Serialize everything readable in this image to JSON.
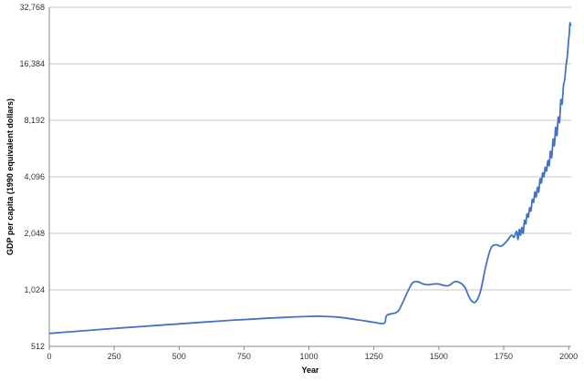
{
  "chart_data": {
    "type": "line",
    "title": "",
    "xlabel": "Year",
    "ylabel": "GDP per capita (1990 equivalent dollars)",
    "x_ticks": [
      0,
      250,
      500,
      750,
      1000,
      1250,
      1500,
      1750,
      2000
    ],
    "x_tick_labels": [
      "0",
      "250",
      "500",
      "750",
      "1000",
      "1250",
      "1500",
      "1750",
      "2000"
    ],
    "y_ticks": [
      512,
      1024,
      2048,
      4096,
      8192,
      16384,
      32768
    ],
    "y_tick_labels": [
      "512",
      "1,024",
      "2,048",
      "4,096",
      "8,192",
      "16,384",
      "32,768"
    ],
    "xlim": [
      0,
      2010
    ],
    "ylim": [
      512,
      32768
    ],
    "y_scale": "log2",
    "grid": "horizontal",
    "legend": "none",
    "line_color": "#4472c4",
    "series": [
      {
        "x": [
          0,
          100,
          200,
          300,
          400,
          500,
          600,
          700,
          800,
          900,
          1000,
          1050,
          1100,
          1150,
          1200,
          1250,
          1290,
          1300,
          1340,
          1360,
          1380,
          1400,
          1420,
          1440,
          1460,
          1480,
          1500,
          1520,
          1540,
          1560,
          1580,
          1600,
          1620,
          1640,
          1660,
          1680,
          1700,
          1720,
          1740,
          1760,
          1780,
          1790,
          1800,
          1805,
          1810,
          1815,
          1820,
          1825,
          1830,
          1835,
          1840,
          1845,
          1850,
          1855,
          1860,
          1865,
          1870,
          1875,
          1880,
          1885,
          1890,
          1895,
          1900,
          1905,
          1910,
          1915,
          1920,
          1925,
          1930,
          1935,
          1940,
          1945,
          1950,
          1955,
          1960,
          1965,
          1970,
          1975,
          1980,
          1985,
          1990,
          1995,
          2000,
          2003,
          2005,
          2008
        ],
        "y": [
          600,
          615,
          630,
          645,
          660,
          675,
          690,
          705,
          718,
          730,
          740,
          740,
          735,
          722,
          705,
          688,
          680,
          750,
          780,
          870,
          1000,
          1120,
          1130,
          1100,
          1090,
          1100,
          1100,
          1080,
          1080,
          1130,
          1120,
          1060,
          920,
          880,
          1000,
          1350,
          1700,
          1780,
          1750,
          1850,
          2000,
          1950,
          2100,
          1900,
          2150,
          2000,
          2200,
          2050,
          2400,
          2300,
          2600,
          2500,
          2800,
          2700,
          3100,
          3000,
          3400,
          3200,
          3600,
          3400,
          4000,
          3800,
          4300,
          4100,
          4600,
          4400,
          5000,
          4700,
          5600,
          5200,
          6500,
          6000,
          7500,
          6800,
          8500,
          8000,
          10500,
          10000,
          12500,
          13500,
          16000,
          18000,
          22000,
          24000,
          27000,
          26000
        ]
      }
    ]
  }
}
